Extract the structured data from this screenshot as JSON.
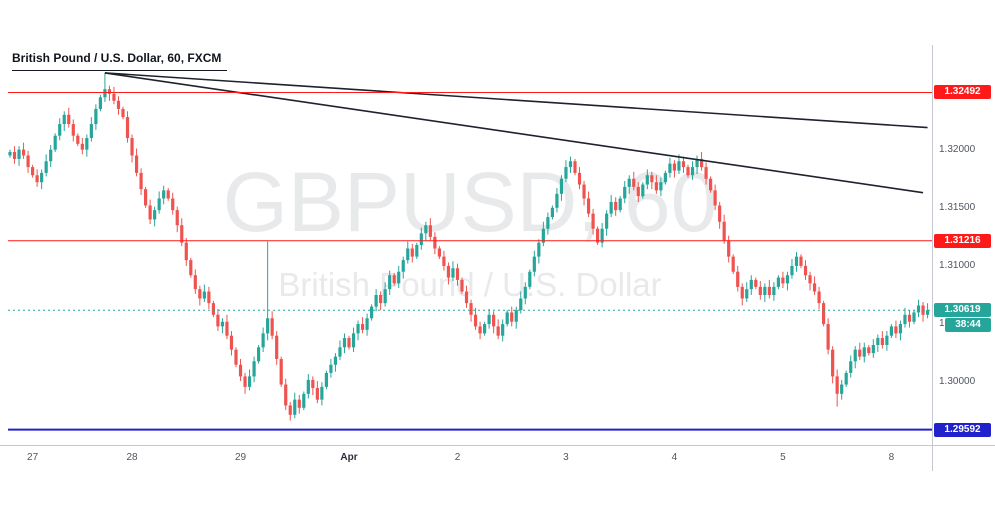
{
  "header": {
    "title": "British Pound / U.S. Dollar, 60, FXCM"
  },
  "watermark": {
    "line1": "GBPUSD, 60",
    "line2": "British Pound / U.S. Dollar"
  },
  "chart_data": {
    "type": "candlestick",
    "title": "British Pound / U.S. Dollar, 60, FXCM",
    "symbol": "GBPUSD",
    "interval": "60",
    "feed": "FXCM",
    "ylim": [
      1.2946,
      1.329
    ],
    "candle_up_color": "#26a69a",
    "candle_down_color": "#ef5350",
    "trendline_color": "#1e222d",
    "open_start": 1.3195,
    "closes": [
      1.3198,
      1.3192,
      1.32,
      1.3195,
      1.3185,
      1.3178,
      1.3172,
      1.318,
      1.319,
      1.32,
      1.3212,
      1.3222,
      1.323,
      1.3222,
      1.3212,
      1.3205,
      1.32,
      1.321,
      1.3222,
      1.3235,
      1.3245,
      1.3252,
      1.3248,
      1.3242,
      1.3235,
      1.3228,
      1.321,
      1.3195,
      1.318,
      1.3166,
      1.3152,
      1.314,
      1.3148,
      1.3158,
      1.3165,
      1.3158,
      1.3148,
      1.3135,
      1.312,
      1.3105,
      1.3092,
      1.308,
      1.3072,
      1.3078,
      1.3068,
      1.3058,
      1.3048,
      1.3052,
      1.304,
      1.3028,
      1.3015,
      1.3005,
      1.2996,
      1.3005,
      1.3018,
      1.303,
      1.3042,
      1.3055,
      1.304,
      1.302,
      1.2998,
      1.298,
      1.2972,
      1.2985,
      1.2978,
      1.299,
      1.3002,
      1.2995,
      1.2985,
      1.2996,
      1.3008,
      1.3015,
      1.3022,
      1.303,
      1.3038,
      1.303,
      1.3042,
      1.305,
      1.3045,
      1.3055,
      1.3065,
      1.3075,
      1.3068,
      1.308,
      1.3092,
      1.3085,
      1.3095,
      1.3105,
      1.3115,
      1.3108,
      1.3118,
      1.3128,
      1.3135,
      1.3125,
      1.3115,
      1.3108,
      1.31,
      1.309,
      1.3098,
      1.3088,
      1.3078,
      1.3068,
      1.3058,
      1.3048,
      1.3042,
      1.305,
      1.3058,
      1.3048,
      1.304,
      1.305,
      1.306,
      1.3052,
      1.3062,
      1.3072,
      1.3082,
      1.3095,
      1.3108,
      1.312,
      1.3132,
      1.3142,
      1.315,
      1.3162,
      1.3175,
      1.3185,
      1.319,
      1.318,
      1.317,
      1.3158,
      1.3145,
      1.3132,
      1.312,
      1.3132,
      1.3145,
      1.3155,
      1.3148,
      1.3158,
      1.3168,
      1.3175,
      1.3168,
      1.316,
      1.317,
      1.3178,
      1.3172,
      1.3165,
      1.3172,
      1.318,
      1.3188,
      1.3182,
      1.319,
      1.3185,
      1.3178,
      1.3185,
      1.3192,
      1.3185,
      1.3175,
      1.3165,
      1.3152,
      1.3138,
      1.3122,
      1.3108,
      1.3095,
      1.3082,
      1.3072,
      1.308,
      1.3088,
      1.3082,
      1.3075,
      1.3082,
      1.3075,
      1.3082,
      1.309,
      1.3085,
      1.3092,
      1.31,
      1.3108,
      1.31,
      1.3092,
      1.3085,
      1.3078,
      1.3068,
      1.305,
      1.3028,
      1.3005,
      1.299,
      1.2998,
      1.3008,
      1.3018,
      1.3028,
      1.3022,
      1.303,
      1.3025,
      1.3032,
      1.3038,
      1.3032,
      1.304,
      1.3048,
      1.3042,
      1.305,
      1.3058,
      1.3052,
      1.306,
      1.3066,
      1.3058,
      1.30619
    ],
    "wick_overrides": [
      {
        "index": 21,
        "high": 1.3266
      },
      {
        "index": 57,
        "high": 1.3121
      },
      {
        "index": 62,
        "low": 1.2967
      },
      {
        "index": 183,
        "low": 1.2979
      }
    ],
    "trendlines": [
      {
        "x1_index": 21,
        "price1": 1.3266,
        "x2_index": 203,
        "price2": 1.3219
      },
      {
        "x1_index": 21,
        "price1": 1.3266,
        "x2_index": 202,
        "price2": 1.3163
      }
    ],
    "horizontal_lines": [
      {
        "price": 1.32492,
        "label": "1.32492",
        "color": "#ff1a1a",
        "style": "solid",
        "width": 1,
        "role": "resistance-upper"
      },
      {
        "price": 1.31216,
        "label": "1.31216",
        "color": "#ff1a1a",
        "style": "solid",
        "width": 1,
        "role": "resistance-lower"
      },
      {
        "price": 1.30619,
        "label": "1.30619",
        "color": "#26a69a",
        "style": "dotted",
        "width": 1,
        "role": "current-price",
        "countdown": "38:44"
      },
      {
        "price": 1.29592,
        "label": "1.29592",
        "color": "#2222cc",
        "style": "solid",
        "width": 2,
        "role": "support"
      }
    ],
    "y_axis_ticks": [
      {
        "label": "1.32000",
        "price": 1.32
      },
      {
        "label": "1.31500",
        "price": 1.315
      },
      {
        "label": "1.31000",
        "price": 1.31
      },
      {
        "label": "1.30500",
        "price": 1.305
      },
      {
        "label": "1.30000",
        "price": 1.3
      }
    ],
    "x_axis_labels": [
      {
        "text": "27",
        "index": 5
      },
      {
        "text": "28",
        "index": 27
      },
      {
        "text": "29",
        "index": 51
      },
      {
        "text": "Apr",
        "index": 75,
        "bold": true
      },
      {
        "text": "2",
        "index": 99
      },
      {
        "text": "3",
        "index": 123
      },
      {
        "text": "4",
        "index": 147
      },
      {
        "text": "5",
        "index": 171
      },
      {
        "text": "8",
        "index": 195
      }
    ]
  }
}
